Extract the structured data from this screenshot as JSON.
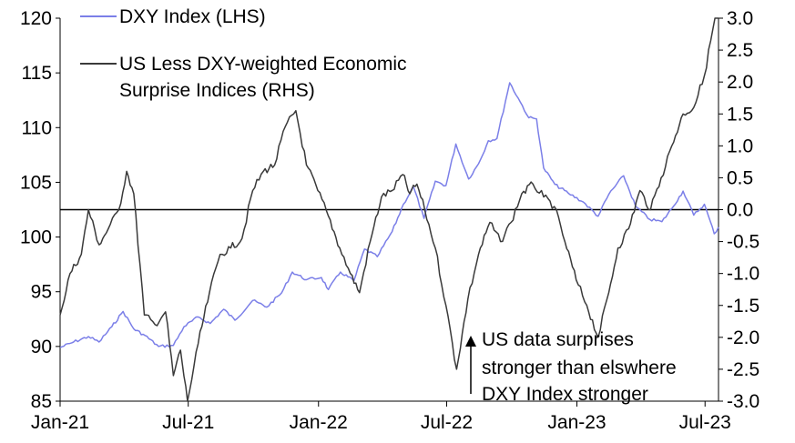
{
  "chart_data": {
    "type": "line",
    "title": "",
    "x_ticks": [
      "Jan-21",
      "Jul-21",
      "Jan-22",
      "Jul-22",
      "Jan-23",
      "Jul-23"
    ],
    "x_range": [
      "2021-01-01",
      "2023-07-20"
    ],
    "left_axis": {
      "ticks": [
        "120",
        "115",
        "110",
        "105",
        "100",
        "95",
        "90",
        "85"
      ],
      "ylim": [
        85,
        120
      ]
    },
    "right_axis": {
      "ticks": [
        "3.0",
        "2.5",
        "2.0",
        "1.5",
        "1.0",
        "0.5",
        "0.0",
        "-0.5",
        "-1.0",
        "-1.5",
        "-2.0",
        "-2.5",
        "-3.0"
      ],
      "ylim": [
        -3.0,
        3.0
      ]
    },
    "reference_line": {
      "axis": "right",
      "value": 0.0
    },
    "legend": [
      {
        "label": "DXY Index (LHS)",
        "color": "#7b7fe8"
      },
      {
        "label": "US Less DXY-weighted Economic",
        "color": "#3a3a3a"
      },
      {
        "label": "Surprise Indices (RHS)",
        "color": "#3a3a3a"
      }
    ],
    "annotation": {
      "arrow": "up",
      "lines": [
        "US data surprises",
        "stronger than elswhere",
        "DXY Index stronger"
      ]
    },
    "series": [
      {
        "name": "DXY Index (LHS)",
        "axis": "left",
        "color": "#7b7fe8",
        "points": [
          [
            "2021-01-01",
            89.9
          ],
          [
            "2021-01-20",
            90.4
          ],
          [
            "2021-02-10",
            90.9
          ],
          [
            "2021-02-25",
            90.4
          ],
          [
            "2021-03-15",
            91.8
          ],
          [
            "2021-03-31",
            93.2
          ],
          [
            "2021-04-15",
            91.6
          ],
          [
            "2021-05-01",
            91.0
          ],
          [
            "2021-05-20",
            90.0
          ],
          [
            "2021-06-10",
            90.1
          ],
          [
            "2021-06-25",
            91.8
          ],
          [
            "2021-07-15",
            92.7
          ],
          [
            "2021-08-01",
            92.1
          ],
          [
            "2021-08-20",
            93.4
          ],
          [
            "2021-09-05",
            92.4
          ],
          [
            "2021-09-30",
            94.2
          ],
          [
            "2021-10-20",
            93.6
          ],
          [
            "2021-11-10",
            94.9
          ],
          [
            "2021-11-25",
            96.8
          ],
          [
            "2021-12-15",
            96.1
          ],
          [
            "2022-01-05",
            96.3
          ],
          [
            "2022-01-15",
            95.2
          ],
          [
            "2022-02-01",
            96.8
          ],
          [
            "2022-02-20",
            96.0
          ],
          [
            "2022-03-07",
            98.9
          ],
          [
            "2022-03-25",
            98.2
          ],
          [
            "2022-04-15",
            100.5
          ],
          [
            "2022-05-01",
            103.0
          ],
          [
            "2022-05-15",
            104.6
          ],
          [
            "2022-05-30",
            101.7
          ],
          [
            "2022-06-15",
            105.1
          ],
          [
            "2022-06-30",
            104.7
          ],
          [
            "2022-07-14",
            108.5
          ],
          [
            "2022-08-01",
            105.3
          ],
          [
            "2022-08-15",
            106.7
          ],
          [
            "2022-08-29",
            108.8
          ],
          [
            "2022-09-10",
            109.0
          ],
          [
            "2022-09-28",
            114.1
          ],
          [
            "2022-10-10",
            112.7
          ],
          [
            "2022-10-25",
            110.9
          ],
          [
            "2022-11-05",
            110.8
          ],
          [
            "2022-11-15",
            106.3
          ],
          [
            "2022-12-01",
            104.8
          ],
          [
            "2022-12-20",
            104.0
          ],
          [
            "2023-01-10",
            103.2
          ],
          [
            "2023-01-31",
            101.9
          ],
          [
            "2023-02-15",
            103.9
          ],
          [
            "2023-03-08",
            105.6
          ],
          [
            "2023-03-25",
            102.8
          ],
          [
            "2023-04-14",
            101.6
          ],
          [
            "2023-05-01",
            101.4
          ],
          [
            "2023-05-15",
            102.6
          ],
          [
            "2023-05-31",
            104.2
          ],
          [
            "2023-06-15",
            102.0
          ],
          [
            "2023-06-30",
            103.0
          ],
          [
            "2023-07-14",
            100.3
          ],
          [
            "2023-07-20",
            100.9
          ]
        ]
      },
      {
        "name": "US Less DXY-weighted Economic Surprise Indices (RHS)",
        "axis": "right",
        "color": "#3a3a3a",
        "points": [
          [
            "2021-01-01",
            -1.65
          ],
          [
            "2021-01-15",
            -1.0
          ],
          [
            "2021-01-31",
            -0.7
          ],
          [
            "2021-02-10",
            0.0
          ],
          [
            "2021-02-25",
            -0.55
          ],
          [
            "2021-03-10",
            -0.3
          ],
          [
            "2021-03-25",
            0.0
          ],
          [
            "2021-04-05",
            0.6
          ],
          [
            "2021-04-15",
            0.25
          ],
          [
            "2021-04-30",
            -1.65
          ],
          [
            "2021-05-15",
            -1.8
          ],
          [
            "2021-05-30",
            -1.6
          ],
          [
            "2021-06-10",
            -2.6
          ],
          [
            "2021-06-20",
            -2.2
          ],
          [
            "2021-06-30",
            -3.0
          ],
          [
            "2021-07-15",
            -2.1
          ],
          [
            "2021-07-31",
            -1.3
          ],
          [
            "2021-08-15",
            -0.7
          ],
          [
            "2021-08-30",
            -0.6
          ],
          [
            "2021-09-15",
            -0.45
          ],
          [
            "2021-09-30",
            0.3
          ],
          [
            "2021-10-15",
            0.6
          ],
          [
            "2021-10-31",
            0.7
          ],
          [
            "2021-11-15",
            1.3
          ],
          [
            "2021-11-30",
            1.55
          ],
          [
            "2021-12-15",
            0.7
          ],
          [
            "2021-12-31",
            0.3
          ],
          [
            "2022-01-15",
            -0.1
          ],
          [
            "2022-01-31",
            -0.6
          ],
          [
            "2022-02-15",
            -1.0
          ],
          [
            "2022-02-28",
            -1.3
          ],
          [
            "2022-03-15",
            -0.5
          ],
          [
            "2022-03-31",
            0.2
          ],
          [
            "2022-04-15",
            0.3
          ],
          [
            "2022-04-30",
            0.55
          ],
          [
            "2022-05-10",
            0.25
          ],
          [
            "2022-05-20",
            0.4
          ],
          [
            "2022-05-31",
            0.0
          ],
          [
            "2022-06-15",
            -0.6
          ],
          [
            "2022-06-30",
            -1.5
          ],
          [
            "2022-07-15",
            -2.5
          ],
          [
            "2022-07-31",
            -1.4
          ],
          [
            "2022-08-15",
            -0.7
          ],
          [
            "2022-08-31",
            -0.2
          ],
          [
            "2022-09-15",
            -0.5
          ],
          [
            "2022-09-30",
            -0.2
          ],
          [
            "2022-10-15",
            0.25
          ],
          [
            "2022-10-31",
            0.4
          ],
          [
            "2022-11-15",
            0.2
          ],
          [
            "2022-11-30",
            0.05
          ],
          [
            "2022-12-15",
            -0.5
          ],
          [
            "2022-12-31",
            -1.1
          ],
          [
            "2023-01-15",
            -1.5
          ],
          [
            "2023-01-31",
            -2.0
          ],
          [
            "2023-02-15",
            -1.3
          ],
          [
            "2023-02-28",
            -0.6
          ],
          [
            "2023-03-15",
            -0.3
          ],
          [
            "2023-03-31",
            0.3
          ],
          [
            "2023-04-15",
            0.0
          ],
          [
            "2023-04-30",
            0.5
          ],
          [
            "2023-05-15",
            1.0
          ],
          [
            "2023-05-31",
            1.5
          ],
          [
            "2023-06-15",
            1.6
          ],
          [
            "2023-06-30",
            2.1
          ],
          [
            "2023-07-15",
            3.0
          ],
          [
            "2023-07-20",
            3.0
          ]
        ]
      }
    ]
  }
}
